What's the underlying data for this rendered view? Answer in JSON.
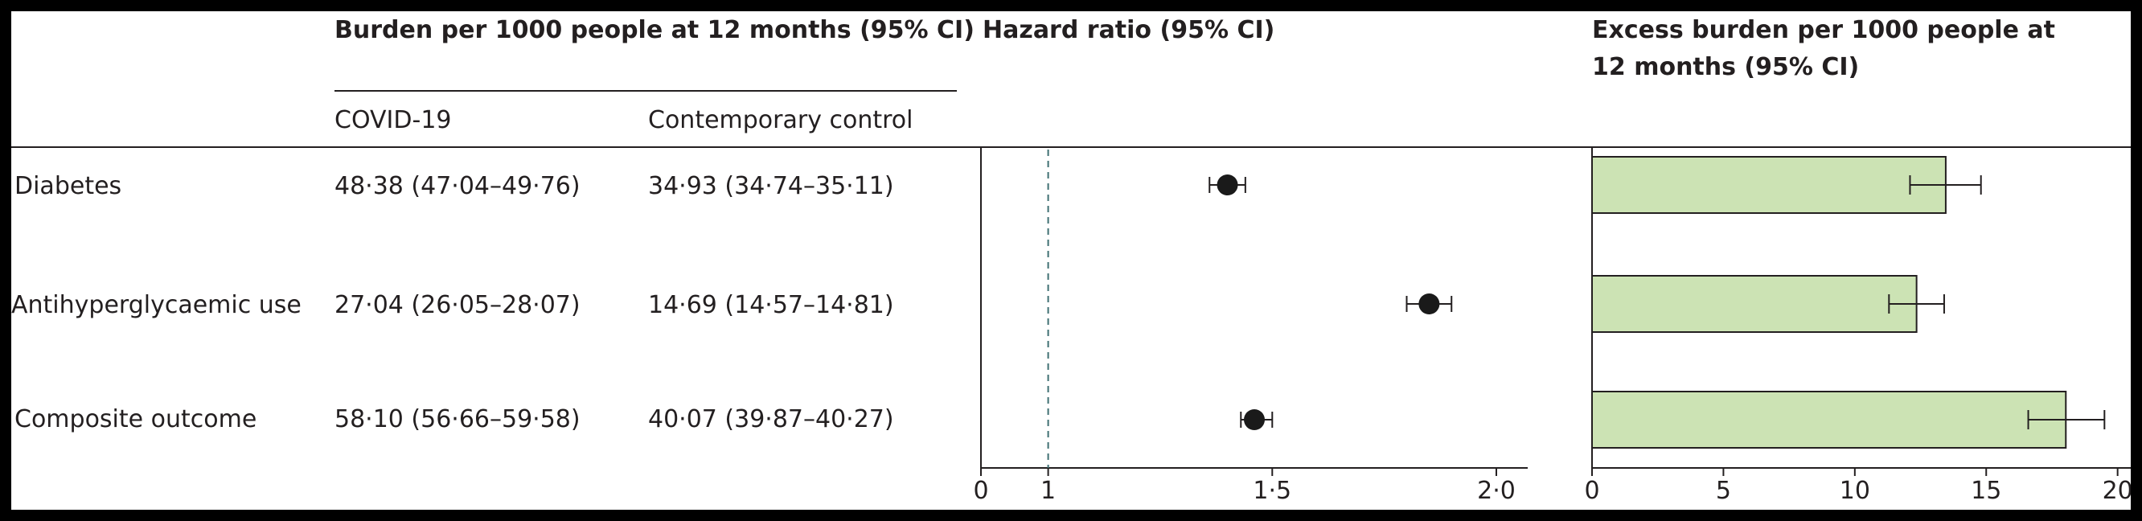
{
  "headers": {
    "burden": "Burden per 1000 people at  12 months (95% CI)",
    "covid": "COVID-19",
    "control": "Contemporary control",
    "hazard": "Hazard ratio (95% CI)",
    "excess_line1": "Excess burden per 1000 people at",
    "excess_line2": "12 months (95% CI)"
  },
  "rows": [
    {
      "label": "Diabetes",
      "covid": "48·38 (47·04–49·76)",
      "control": "34·93 (34·74–35·11)"
    },
    {
      "label": "Antihyperglycaemic use",
      "covid": "27·04 (26·05–28·07)",
      "control": "14·69 (14·57–14·81)"
    },
    {
      "label": "Composite outcome",
      "covid": "58·10 (56·66–59·58)",
      "control": "40·07 (39·87–40·27)"
    }
  ],
  "chart_data": [
    {
      "type": "scatter",
      "title": "Hazard ratio (95% CI)",
      "categories": [
        "Diabetes",
        "Antihyperglycaemic use",
        "Composite outcome"
      ],
      "values": [
        1.4,
        1.85,
        1.46
      ],
      "ci_low": [
        1.36,
        1.8,
        1.43
      ],
      "ci_high": [
        1.44,
        1.9,
        1.5
      ],
      "xlim": [
        0.85,
        2.07
      ],
      "reference_line": 1,
      "ticks": [
        {
          "value": 0.85,
          "label": "0"
        },
        {
          "value": 1.0,
          "label": "1"
        },
        {
          "value": 1.5,
          "label": "1·5"
        },
        {
          "value": 2.0,
          "label": "2·0"
        }
      ],
      "marker_color": "#1a1a1a"
    },
    {
      "type": "bar",
      "orientation": "horizontal",
      "title": "Excess burden per 1000 people at 12 months (95% CI)",
      "categories": [
        "Diabetes",
        "Antihyperglycaemic use",
        "Composite outcome"
      ],
      "values": [
        13.46,
        12.35,
        18.03
      ],
      "ci_low": [
        12.1,
        11.3,
        16.6
      ],
      "ci_high": [
        14.8,
        13.4,
        19.5
      ],
      "xlim": [
        0,
        20.5
      ],
      "ticks": [
        {
          "value": 0,
          "label": "0"
        },
        {
          "value": 5,
          "label": "5"
        },
        {
          "value": 10,
          "label": "10"
        },
        {
          "value": 15,
          "label": "15"
        },
        {
          "value": 20,
          "label": "20"
        }
      ],
      "bar_color": "#cce3b4",
      "bar_edge": "#231f20"
    }
  ]
}
